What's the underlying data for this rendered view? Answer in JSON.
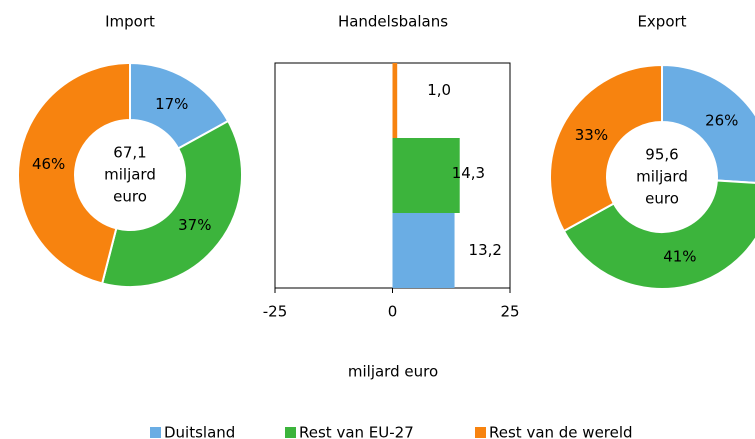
{
  "chart_data": [
    {
      "type": "donut",
      "title": "Import",
      "categories": [
        "Duitsland",
        "Rest van EU-27",
        "Rest van de wereld"
      ],
      "values": [
        17,
        37,
        46
      ],
      "value_labels": [
        "17%",
        "37%",
        "46%"
      ],
      "colors": [
        "#6aade4",
        "#3cb43c",
        "#f7830f"
      ],
      "center_label": [
        "67,1",
        "miljard",
        "euro"
      ]
    },
    {
      "type": "hbar",
      "title": "Handelsbalans",
      "categories": [
        null,
        null,
        null
      ],
      "values": [
        1.0,
        14.3,
        13.2
      ],
      "value_labels": [
        "1,0",
        "14,3",
        "13,2"
      ],
      "colors": [
        "#f7830f",
        "#3cb43c",
        "#6aade4"
      ],
      "xlim": [
        -25,
        25
      ],
      "xticks": [
        -25,
        0,
        25
      ],
      "xlabel": "miljard euro"
    },
    {
      "type": "donut",
      "title": "Export",
      "categories": [
        "Duitsland",
        "Rest van EU-27",
        "Rest van de wereld"
      ],
      "values": [
        26,
        41,
        33
      ],
      "value_labels": [
        "26%",
        "41%",
        "33%"
      ],
      "colors": [
        "#6aade4",
        "#3cb43c",
        "#f7830f"
      ],
      "center_label": [
        "95,6",
        "miljard",
        "euro"
      ]
    }
  ]
}
